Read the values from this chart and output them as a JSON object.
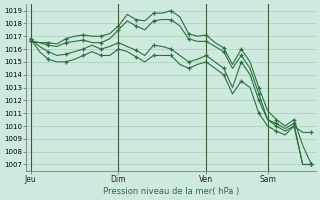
{
  "title": "Pression niveau de la mer( hPa )",
  "ylabel_ticks": [
    1007,
    1008,
    1009,
    1010,
    1011,
    1012,
    1013,
    1014,
    1015,
    1016,
    1017,
    1018,
    1019
  ],
  "ylim": [
    1006.5,
    1019.5
  ],
  "background_color": "#ceeade",
  "grid_color": "#a0c8b0",
  "line_color": "#2d6e3e",
  "xtick_labels": [
    "Jeu",
    "Dim",
    "Ven",
    "Sam"
  ],
  "xtick_positions": [
    0,
    10,
    20,
    27
  ],
  "vline_positions": [
    0,
    10,
    20,
    27
  ],
  "xlim": [
    -0.5,
    32.5
  ],
  "n_points": 33,
  "series1_x": [
    0,
    1,
    2,
    3,
    4,
    5,
    6,
    7,
    8,
    9,
    10,
    11,
    12,
    13,
    14,
    15,
    16,
    17,
    18,
    19,
    20,
    21,
    22,
    23,
    24,
    25,
    26,
    27,
    28,
    29,
    30,
    31,
    32
  ],
  "series1": [
    1016.6,
    1016.5,
    1016.5,
    1016.4,
    1016.8,
    1017.0,
    1017.1,
    1017.0,
    1017.0,
    1017.2,
    1017.8,
    1018.7,
    1018.3,
    1018.2,
    1018.8,
    1018.8,
    1019.0,
    1018.5,
    1017.2,
    1017.0,
    1017.1,
    1016.5,
    1016.1,
    1014.8,
    1016.0,
    1015.0,
    1013.0,
    1011.2,
    1010.5,
    1010.0,
    1010.5,
    1008.5,
    1007.0
  ],
  "series2": [
    1016.6,
    1016.5,
    1016.3,
    1016.2,
    1016.5,
    1016.6,
    1016.7,
    1016.5,
    1016.5,
    1016.8,
    1017.5,
    1018.2,
    1017.8,
    1017.5,
    1018.2,
    1018.3,
    1018.3,
    1017.8,
    1016.8,
    1016.6,
    1016.6,
    1016.2,
    1015.8,
    1014.5,
    1015.5,
    1014.5,
    1012.5,
    1010.5,
    1010.2,
    1009.8,
    1010.2,
    1007.0,
    1007.0
  ],
  "series3": [
    1016.8,
    1016.2,
    1015.8,
    1015.5,
    1015.6,
    1015.8,
    1016.0,
    1016.3,
    1016.0,
    1016.2,
    1016.5,
    1016.2,
    1015.9,
    1015.5,
    1016.3,
    1016.2,
    1016.0,
    1015.5,
    1015.0,
    1015.2,
    1015.5,
    1015.0,
    1014.5,
    1013.0,
    1015.0,
    1014.0,
    1012.0,
    1010.5,
    1010.0,
    1009.6,
    1010.0,
    1007.0,
    1007.0
  ],
  "series4": [
    1016.8,
    1015.8,
    1015.2,
    1015.0,
    1015.0,
    1015.2,
    1015.5,
    1015.8,
    1015.5,
    1015.5,
    1016.0,
    1015.8,
    1015.4,
    1015.0,
    1015.5,
    1015.5,
    1015.5,
    1014.8,
    1014.5,
    1014.8,
    1015.0,
    1014.5,
    1014.0,
    1012.5,
    1013.5,
    1013.0,
    1011.0,
    1010.0,
    1009.6,
    1009.3,
    1010.0,
    1009.5,
    1009.5
  ]
}
